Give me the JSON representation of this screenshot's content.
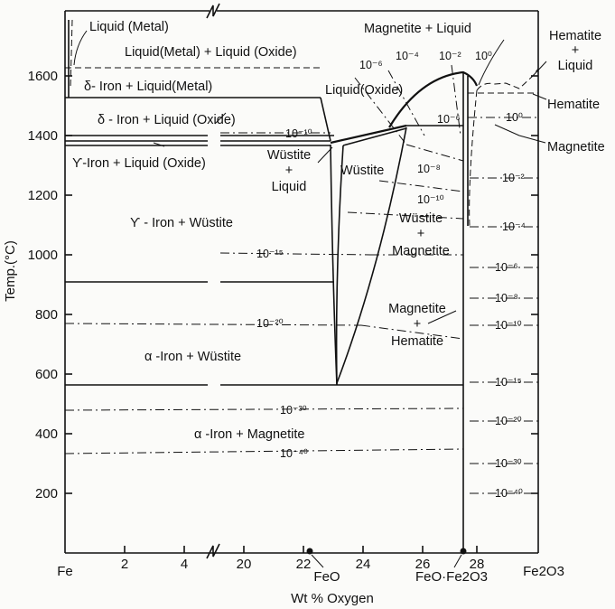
{
  "y_axis": {
    "title": "Temp.(°C)",
    "ticks": [
      "1600",
      "1400",
      "1200",
      "1000",
      "800",
      "600",
      "400",
      "200"
    ]
  },
  "x_axis": {
    "title": "Wt % Oxygen",
    "ticks": [
      "Fe",
      "2",
      "4",
      "20",
      "22",
      "24",
      "26",
      "28",
      "Fe2O3"
    ],
    "markers": [
      "FeO",
      "FeO·Fe2O3"
    ]
  },
  "phase_labels": {
    "liquid_metal": "Liquid (Metal)",
    "liquid_metal_liquid_oxide": "Liquid(Metal) + Liquid (Oxide)",
    "delta_iron_liquid_metal": "δ- Iron + Liquid(Metal)",
    "delta_iron_liquid_oxide": "δ - Iron + Liquid (Oxide)",
    "gamma_iron_liquid_oxide": "ϒ-Iron + Liquid (Oxide)",
    "liquid_oxide": "Liquid(Oxide)",
    "wustite_liquid": [
      "Wüstite",
      "+",
      "Liquid"
    ],
    "wustite": "Wüstite",
    "gamma_iron_wustite": "ϒ - Iron + Wüstite",
    "wustite_magnetite": [
      "Wüstite",
      "+",
      "Magnetite"
    ],
    "magnetite_liquid": "Magnetite + Liquid",
    "magnetite_hematite": [
      "Magnetite",
      "+",
      "Hematite"
    ],
    "alpha_iron_wustite": "α -Iron + Wüstite",
    "alpha_iron_magnetite": "α -Iron + Magnetite",
    "hematite_liquid": [
      "Hematite",
      "+",
      "Liquid"
    ],
    "hematite": "Hematite",
    "magnetite": "Magnetite"
  },
  "oxygen_isobars": {
    "left": [
      "10⁻¹⁰",
      "10⁻¹⁵",
      "10⁻²⁰",
      "10⁻³⁰",
      "10⁻⁴⁰"
    ],
    "top": [
      "10⁻⁶",
      "10⁻⁴",
      "10⁻²",
      "10⁰"
    ],
    "middle": [
      "10⁻⁶",
      "10⁻⁸",
      "10⁻¹⁰"
    ],
    "right": [
      "10⁰",
      "10⁻²",
      "10⁻⁴",
      "10⁻⁶",
      "10⁻⁸",
      "10⁻¹⁰",
      "10⁻¹⁵",
      "10⁻²⁰",
      "10⁻³⁰",
      "10⁻⁴⁰"
    ]
  }
}
